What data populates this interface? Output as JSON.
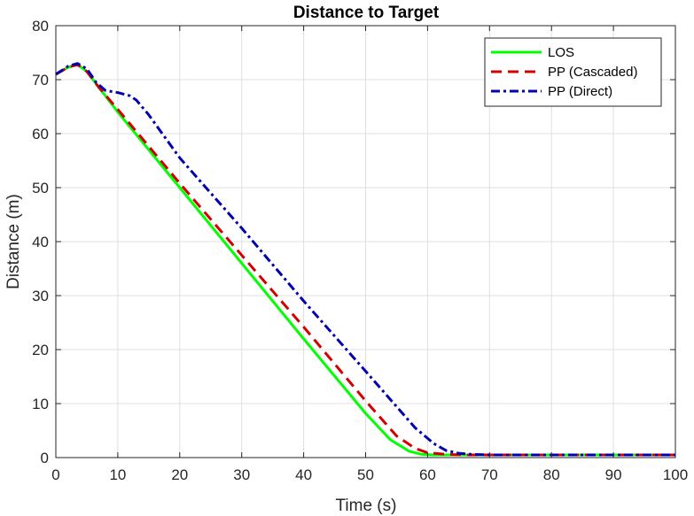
{
  "chart_data": {
    "type": "line",
    "title": "Distance to Target",
    "xlabel": "Time (s)",
    "ylabel": "Distance (m)",
    "xlim": [
      0,
      100
    ],
    "ylim": [
      0,
      80
    ],
    "xticks": [
      0,
      10,
      20,
      30,
      40,
      50,
      60,
      70,
      80,
      90,
      100
    ],
    "yticks": [
      0,
      10,
      20,
      30,
      40,
      50,
      60,
      70,
      80
    ],
    "grid": true,
    "legend_position": "top-right",
    "series": [
      {
        "name": "LOS",
        "color": "#00ff00",
        "style": "solid",
        "x": [
          0,
          2,
          3.5,
          5,
          7,
          10,
          20,
          30,
          40,
          50,
          54,
          57,
          59,
          61,
          65,
          70,
          80,
          100
        ],
        "y": [
          71,
          72.3,
          72.8,
          71.5,
          68.5,
          64,
          50,
          36,
          22,
          8.2,
          3.3,
          1.2,
          0.6,
          0.5,
          0.5,
          0.5,
          0.5,
          0.5
        ]
      },
      {
        "name": "PP (Cascaded)",
        "color": "#d40000",
        "style": "dashed",
        "x": [
          0,
          2,
          3.5,
          5,
          7,
          10,
          20,
          30,
          40,
          50,
          55,
          58,
          60,
          63,
          66,
          70,
          80,
          100
        ],
        "y": [
          71,
          72.3,
          72.8,
          71.5,
          68.5,
          64.5,
          50.8,
          37.5,
          24.2,
          10.5,
          4,
          1.7,
          0.9,
          0.6,
          0.5,
          0.5,
          0.5,
          0.5
        ]
      },
      {
        "name": "PP (Direct)",
        "color": "#0000b0",
        "style": "dashdot",
        "x": [
          0,
          2,
          3.5,
          5,
          6.5,
          8,
          10,
          12,
          13,
          15,
          20,
          30,
          40,
          50,
          58,
          61,
          63,
          65,
          67,
          70,
          80,
          100
        ],
        "y": [
          71,
          72.5,
          73,
          72,
          69.5,
          68,
          67.6,
          67,
          66.2,
          63.5,
          55.5,
          42.5,
          29,
          16,
          5.5,
          2.6,
          1.3,
          0.8,
          0.6,
          0.5,
          0.5,
          0.5
        ]
      }
    ]
  }
}
